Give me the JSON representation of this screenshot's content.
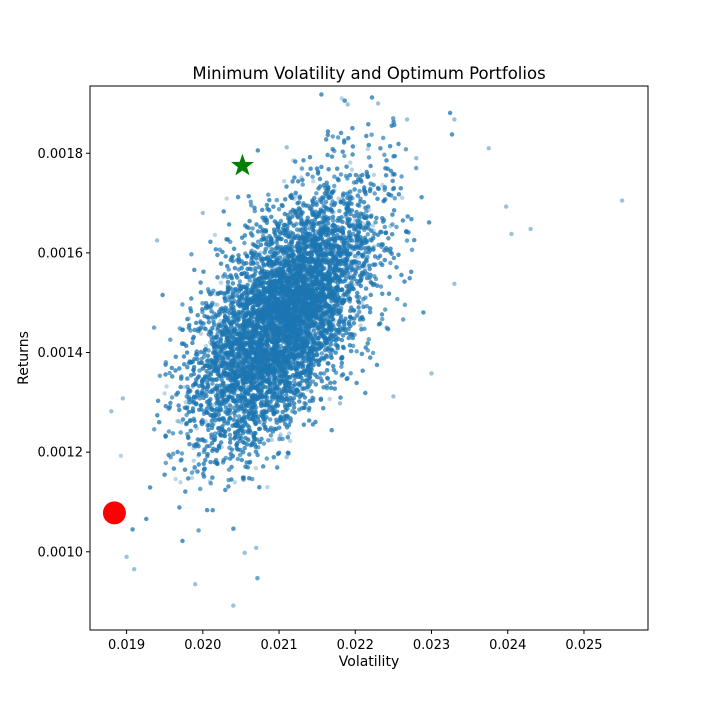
{
  "chart_data": {
    "type": "scatter",
    "title": "Minimum Volatility and Optimum Portfolios",
    "xlabel": "Volatility",
    "ylabel": "Returns",
    "xlim": [
      0.01852,
      0.02584
    ],
    "ylim": [
      0.000843,
      0.001935
    ],
    "x_ticks": [
      0.019,
      0.02,
      0.021,
      0.022,
      0.023,
      0.024,
      0.025
    ],
    "x_tick_labels": [
      "0.019",
      "0.020",
      "0.021",
      "0.022",
      "0.023",
      "0.024",
      "0.025"
    ],
    "y_ticks": [
      0.001,
      0.0012,
      0.0014,
      0.0016,
      0.0018
    ],
    "y_tick_labels": [
      "0.0010",
      "0.0012",
      "0.0014",
      "0.0016",
      "0.0018"
    ],
    "grid": false,
    "series": [
      {
        "marker": "circle",
        "color": "#1f77b4",
        "opacity": 0.3,
        "cloud": {
          "center": [
            0.02105,
            0.00147
          ],
          "std": [
            0.00058,
            0.000125
          ],
          "correlation": 0.6,
          "n_points": 20000
        },
        "outliers": [
          [
            0.0255,
            0.001705
          ],
          [
            0.0243,
            0.001648
          ],
          [
            0.02405,
            0.001638
          ],
          [
            0.02398,
            0.001693
          ],
          [
            0.02375,
            0.00181
          ],
          [
            0.0233,
            0.001868
          ],
          [
            0.0233,
            0.001538
          ],
          [
            0.0228,
            0.00179
          ],
          [
            0.02268,
            0.001868
          ],
          [
            0.0223,
            0.0019
          ],
          [
            0.0219,
            0.001898
          ],
          [
            0.023,
            0.001358
          ],
          [
            0.0225,
            0.001312
          ],
          [
            0.0218,
            0.001298
          ],
          [
            0.0211,
            0.00119
          ],
          [
            0.0204,
            0.000892
          ],
          [
            0.0199,
            0.000935
          ],
          [
            0.0191,
            0.000965
          ],
          [
            0.019,
            0.00099
          ],
          [
            0.0207,
            0.001008
          ],
          [
            0.02055,
            0.000998
          ],
          [
            0.01895,
            0.001308
          ],
          [
            0.0188,
            0.001282
          ],
          [
            0.0194,
            0.001625
          ],
          [
            0.02,
            0.00168
          ],
          [
            0.0211,
            0.001812
          ]
        ]
      },
      {
        "name": "",
        "marker": "star",
        "color": "#008000",
        "points": [
          [
            0.02052,
            0.001775
          ]
        ]
      },
      {
        "name": "",
        "marker": "circle",
        "color": "#ff0000",
        "points": [
          [
            0.01884,
            0.001078
          ]
        ]
      }
    ]
  }
}
